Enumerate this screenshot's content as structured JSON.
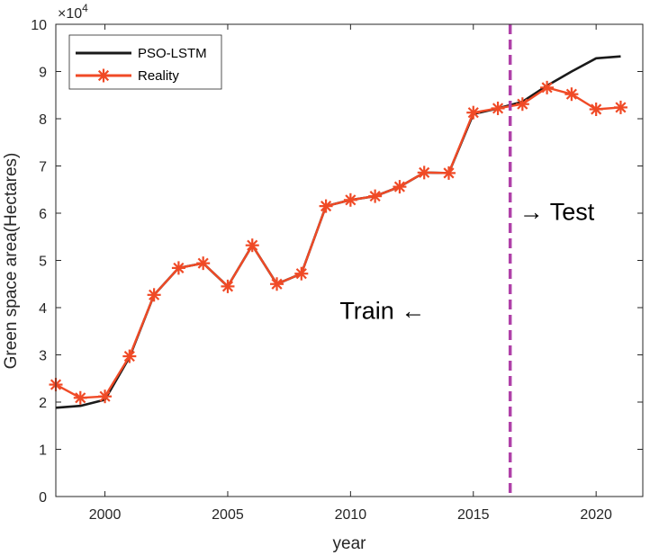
{
  "chart_data": {
    "type": "line",
    "title": "",
    "xlabel": "year",
    "ylabel": "Green space area(Hectares)",
    "y_exponent_label": "×10",
    "y_exponent_power": "4",
    "xlim": [
      1998,
      2021.9
    ],
    "ylim": [
      0,
      10
    ],
    "x_ticks": [
      2000,
      2005,
      2010,
      2015,
      2020
    ],
    "y_ticks": [
      0,
      1,
      2,
      3,
      4,
      5,
      6,
      7,
      8,
      9,
      10
    ],
    "x_tick_labels": [
      "2000",
      "2005",
      "2010",
      "2015",
      "2020"
    ],
    "y_tick_labels": [
      "0",
      "1",
      "2",
      "3",
      "4",
      "5",
      "6",
      "7",
      "8",
      "9",
      "10"
    ],
    "grid": false,
    "legend_position": "top-left",
    "split_line": {
      "x": 2016.5,
      "color": "#B041A8",
      "style": "dashed"
    },
    "annotations": [
      {
        "id": "train",
        "text": "Train ←",
        "x": 2011.3,
        "y": 3.95
      },
      {
        "id": "test",
        "text": "→ Test",
        "x": 2018.4,
        "y": 6.05
      }
    ],
    "series": [
      {
        "name": "PSO-LSTM",
        "color": "#1a1a1a",
        "marker": "none",
        "x": [
          1998,
          1999,
          2000,
          2001,
          2002,
          2003,
          2004,
          2005,
          2006,
          2007,
          2008,
          2009,
          2010,
          2011,
          2012,
          2013,
          2014,
          2015,
          2016,
          2017,
          2018,
          2019,
          2020,
          2021
        ],
        "values": [
          1.88,
          1.92,
          2.05,
          2.95,
          4.27,
          4.84,
          4.94,
          4.45,
          5.32,
          4.5,
          4.72,
          6.15,
          6.28,
          6.36,
          6.56,
          6.86,
          6.85,
          8.1,
          8.22,
          8.36,
          8.7,
          9.0,
          9.28,
          9.32
        ]
      },
      {
        "name": "Reality",
        "color": "#F04A26",
        "marker": "asterisk",
        "x": [
          1998,
          1999,
          2000,
          2001,
          2002,
          2003,
          2004,
          2005,
          2006,
          2007,
          2008,
          2009,
          2010,
          2011,
          2012,
          2013,
          2014,
          2015,
          2016,
          2017,
          2018,
          2019,
          2020,
          2021
        ],
        "values": [
          2.37,
          2.09,
          2.12,
          2.97,
          4.27,
          4.84,
          4.94,
          4.45,
          5.32,
          4.5,
          4.72,
          6.15,
          6.28,
          6.36,
          6.56,
          6.86,
          6.85,
          8.13,
          8.22,
          8.31,
          8.66,
          8.52,
          8.2,
          8.24
        ]
      }
    ]
  }
}
